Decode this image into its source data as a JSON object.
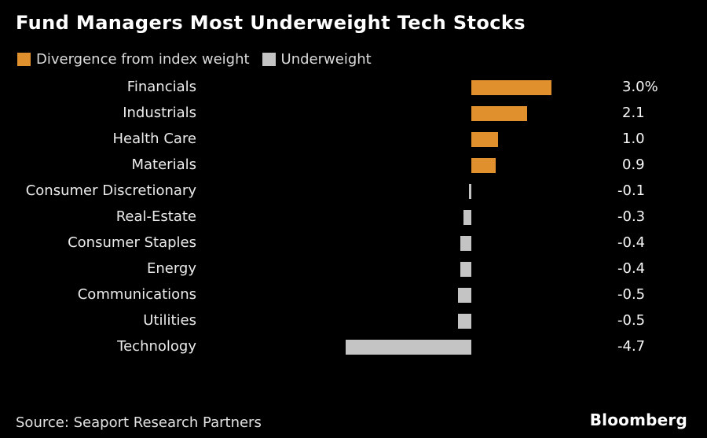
{
  "chart_data": {
    "type": "bar",
    "orientation": "horizontal",
    "title": "Fund Managers Most Underweight Tech Stocks",
    "legend_position": "top",
    "legend": [
      {
        "label": "Divergence from index weight",
        "color": "#e0912e"
      },
      {
        "label": "Underweight",
        "color": "#c4c4c4"
      }
    ],
    "categories": [
      "Financials",
      "Industrials",
      "Health Care",
      "Materials",
      "Consumer Discretionary",
      "Real-Estate",
      "Consumer Staples",
      "Energy",
      "Communications",
      "Utilities",
      "Technology"
    ],
    "values": [
      3.0,
      2.1,
      1.0,
      0.9,
      -0.1,
      -0.3,
      -0.4,
      -0.4,
      -0.5,
      -0.5,
      -4.7
    ],
    "value_labels": [
      "3.0%",
      "2.1",
      "1.0",
      "0.9",
      "-0.1",
      "-0.3",
      "-0.4",
      "-0.4",
      "-0.5",
      "-0.5",
      "-4.7"
    ],
    "xlim": [
      -5.0,
      3.5
    ],
    "grid": false,
    "axis_visible": false,
    "unit": "%"
  },
  "footer": {
    "source": "Source: Seaport Research Partners",
    "brand": "Bloomberg"
  },
  "colors": {
    "background": "#000000",
    "title_text": "#ffffff",
    "label_text": "#ebebeb",
    "positive_bar": "#e0912e",
    "negative_bar": "#c4c4c4"
  }
}
